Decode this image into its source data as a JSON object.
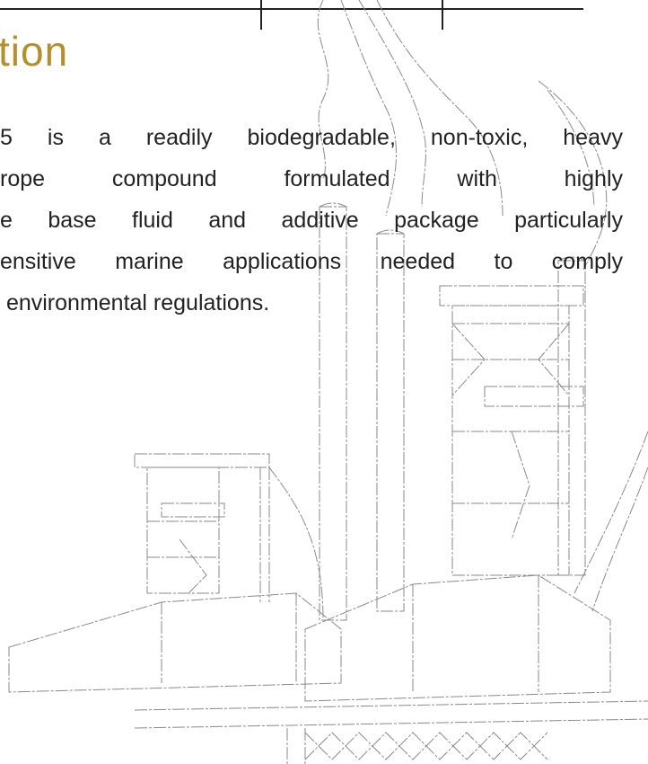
{
  "heading": "tion",
  "paragraph": {
    "lines": [
      "5 is a readily biodegradable, non-toxic, heavy",
      "rope compound formulated with highly",
      "e base fluid and additive package particularly",
      "ensitive marine applications needed to comply",
      " environmental regulations."
    ]
  }
}
